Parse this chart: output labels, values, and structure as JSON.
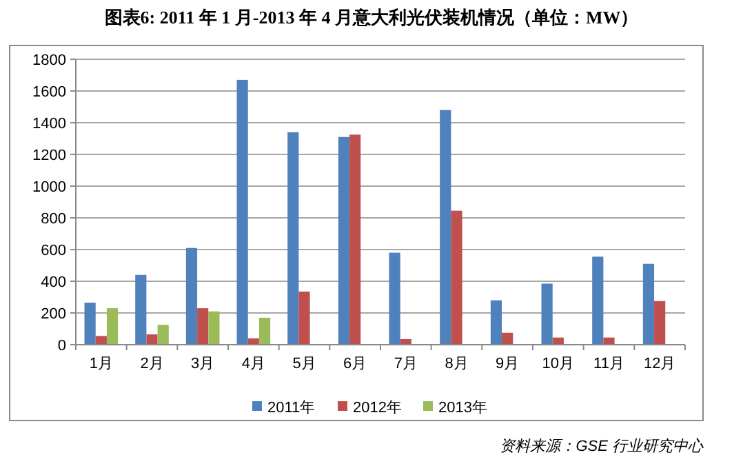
{
  "chart_data": {
    "type": "bar",
    "title": "图表6: 2011 年 1 月-2013 年 4 月意大利光伏装机情况（单位：MW）",
    "categories": [
      "1月",
      "2月",
      "3月",
      "4月",
      "5月",
      "6月",
      "7月",
      "8月",
      "9月",
      "10月",
      "11月",
      "12月"
    ],
    "series": [
      {
        "name": "2011年",
        "color": "#4f81bd",
        "values": [
          265,
          440,
          610,
          1670,
          1340,
          1310,
          580,
          1480,
          280,
          385,
          555,
          510
        ]
      },
      {
        "name": "2012年",
        "color": "#c0504d",
        "values": [
          55,
          65,
          230,
          40,
          335,
          1325,
          35,
          845,
          75,
          45,
          45,
          275
        ]
      },
      {
        "name": "2013年",
        "color": "#9bbb59",
        "values": [
          230,
          125,
          210,
          170,
          null,
          null,
          null,
          null,
          null,
          null,
          null,
          null
        ]
      }
    ],
    "ylim": [
      0,
      1800
    ],
    "yticks": [
      0,
      200,
      400,
      600,
      800,
      1000,
      1200,
      1400,
      1600,
      1800
    ],
    "grid": "y",
    "legend": "bottom",
    "annotations": [
      "资料来源：GSE 行业研究中心"
    ]
  }
}
